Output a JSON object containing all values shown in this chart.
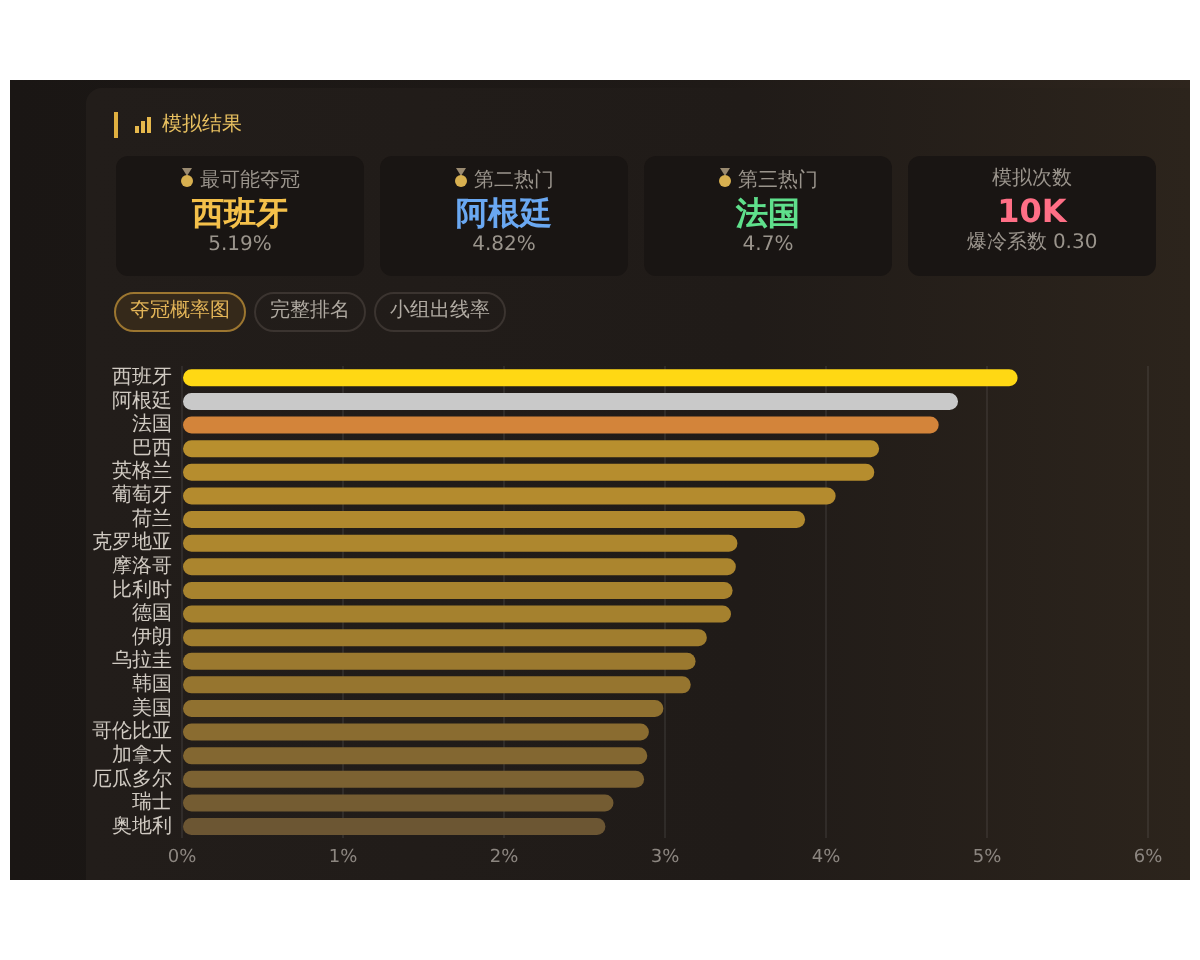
{
  "chart_data": [
    {
      "type": "other",
      "title": "模拟结果",
      "annotations": [
        "最可能夺冠",
        "西班牙",
        "5.19%",
        "第二热门",
        "阿根廷",
        "4.82%",
        "第三热门",
        "法国",
        "4.7%",
        "模拟次数",
        "10K",
        "爆冷系数 0.30"
      ]
    },
    {
      "type": "bar",
      "orientation": "horizontal",
      "annotations": [
        "夺冠概率图",
        "完整排名",
        "小组出线率"
      ],
      "categories": [
        "西班牙",
        "阿根廷",
        "法国",
        "巴西",
        "英格兰",
        "葡萄牙",
        "荷兰",
        "克罗地亚",
        "摩洛哥",
        "比利时",
        "德国",
        "伊朗",
        "乌拉圭",
        "韩国",
        "美国",
        "哥伦比亚",
        "加拿大",
        "厄瓜多尔",
        "瑞士",
        "奥地利"
      ],
      "values": [
        5.19,
        4.82,
        4.7,
        4.33,
        4.3,
        4.06,
        3.87,
        3.45,
        3.44,
        3.42,
        3.41,
        3.26,
        3.19,
        3.16,
        2.99,
        2.9,
        2.89,
        2.87,
        2.68,
        2.63
      ],
      "colors": [
        "#ffd814",
        "#c9c9c9",
        "#d3843a",
        "#b88f2e",
        "#b68d2e",
        "#b48b2e",
        "#b1892e",
        "#ae872e",
        "#ab852e",
        "#a8832e",
        "#a5812e",
        "#a07d2e",
        "#9b792f",
        "#96752f",
        "#907130",
        "#8a6c30",
        "#836731",
        "#7c6232",
        "#745c32",
        "#6c5633"
      ],
      "xlim": [
        0,
        6
      ],
      "xticks": [
        {
          "value": 0,
          "label": "0%"
        },
        {
          "value": 1,
          "label": "1%"
        },
        {
          "value": 2,
          "label": "2%"
        },
        {
          "value": 3,
          "label": "3%"
        },
        {
          "value": 4,
          "label": "4%"
        },
        {
          "value": 5,
          "label": "5%"
        },
        {
          "value": 6,
          "label": "6%"
        }
      ],
      "grid": "x"
    }
  ]
}
